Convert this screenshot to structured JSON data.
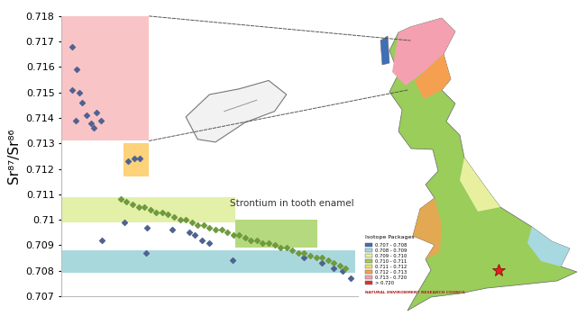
{
  "chart_data": {
    "type": "scatter",
    "ylabel": "Sr⁸⁷/Sr⁸⁶",
    "annotation": "Strontium in tooth enamel",
    "xlim": [
      0,
      100
    ],
    "ylim": [
      0.707,
      0.718
    ],
    "yticks": [
      0.707,
      0.708,
      0.709,
      0.71,
      0.711,
      0.712,
      0.713,
      0.714,
      0.715,
      0.716,
      0.717,
      0.718
    ],
    "tick_labels": "y",
    "grid": false,
    "marker": "diamond",
    "bands": [
      {
        "x": [
          0,
          29.6
        ],
        "y": [
          0.7131,
          0.7183
        ],
        "color": "#f9c4c6"
      },
      {
        "x": [
          20.8,
          29.6
        ],
        "y": [
          0.7117,
          0.713
        ],
        "color": "#fcd27a"
      },
      {
        "x": [
          0,
          58.6
        ],
        "y": [
          0.7099,
          0.7109
        ],
        "color": "#e3f0a8"
      },
      {
        "x": [
          58.6,
          86.5
        ],
        "y": [
          0.7089,
          0.71
        ],
        "color": "#b5d97e"
      },
      {
        "x": [
          0,
          99.2
        ],
        "y": [
          0.7079,
          0.7088
        ],
        "color": "#a9d8dc"
      }
    ],
    "series": [
      {
        "color": "#4f6391",
        "x": [
          3.7,
          5.1,
          3.7,
          5.9,
          7.0,
          4.8,
          8.5,
          9.9,
          11.8,
          13.2,
          11.0,
          22.5,
          24.5,
          26.5,
          13.5,
          21.1,
          29.0,
          28.7,
          37.5,
          43.1,
          45.1,
          47.3,
          50.0,
          57.7,
          82,
          88,
          92,
          95,
          97.7
        ],
        "values": [
          0.7168,
          0.7159,
          0.7151,
          0.715,
          0.7146,
          0.7139,
          0.7141,
          0.7138,
          0.7142,
          0.7139,
          0.7136,
          0.7123,
          0.7124,
          0.7124,
          0.7092,
          0.7099,
          0.7097,
          0.7087,
          0.7096,
          0.7095,
          0.7094,
          0.7092,
          0.7091,
          0.7084,
          0.7085,
          0.7083,
          0.7081,
          0.708,
          0.7077
        ]
      },
      {
        "color": "#6f9a3e",
        "x": [
          20,
          22,
          24,
          26,
          28,
          30,
          32,
          34,
          36,
          38,
          40,
          42,
          44,
          46,
          48,
          50,
          52,
          54,
          56,
          58,
          60,
          62,
          64,
          66,
          68,
          70,
          72,
          74,
          76,
          78,
          80,
          82,
          84,
          86,
          88,
          90,
          92,
          94,
          96
        ],
        "values": [
          0.7108,
          0.7107,
          0.7106,
          0.7105,
          0.7105,
          0.7104,
          0.7103,
          0.7103,
          0.7102,
          0.7101,
          0.71,
          0.71,
          0.7099,
          0.7098,
          0.7098,
          0.7097,
          0.7096,
          0.7096,
          0.7095,
          0.7094,
          0.7094,
          0.7093,
          0.7092,
          0.7092,
          0.7091,
          0.7091,
          0.709,
          0.7089,
          0.7089,
          0.7088,
          0.7087,
          0.7087,
          0.7086,
          0.7085,
          0.7085,
          0.7084,
          0.7083,
          0.7082,
          0.7081
        ]
      }
    ]
  },
  "map": {
    "legend_title": "Isotope Packages",
    "legend": [
      {
        "label": "0.707 - 0.708",
        "color": "#3f6fb5"
      },
      {
        "label": "0.708 - 0.709",
        "color": "#a8d8e0"
      },
      {
        "label": "0.709 - 0.710",
        "color": "#e8f0a0"
      },
      {
        "label": "0.710 - 0.711",
        "color": "#9acd5a"
      },
      {
        "label": "0.711 - 0.712",
        "color": "#f0e060"
      },
      {
        "label": "0.712 - 0.713",
        "color": "#f5a050"
      },
      {
        "label": "0.713 - 0.720",
        "color": "#f4a0b0"
      },
      {
        "label": "> 0.720",
        "color": "#e03030"
      }
    ],
    "credit": "NATURAL ENVIRONMENT RESEARCH COUNCIL"
  }
}
